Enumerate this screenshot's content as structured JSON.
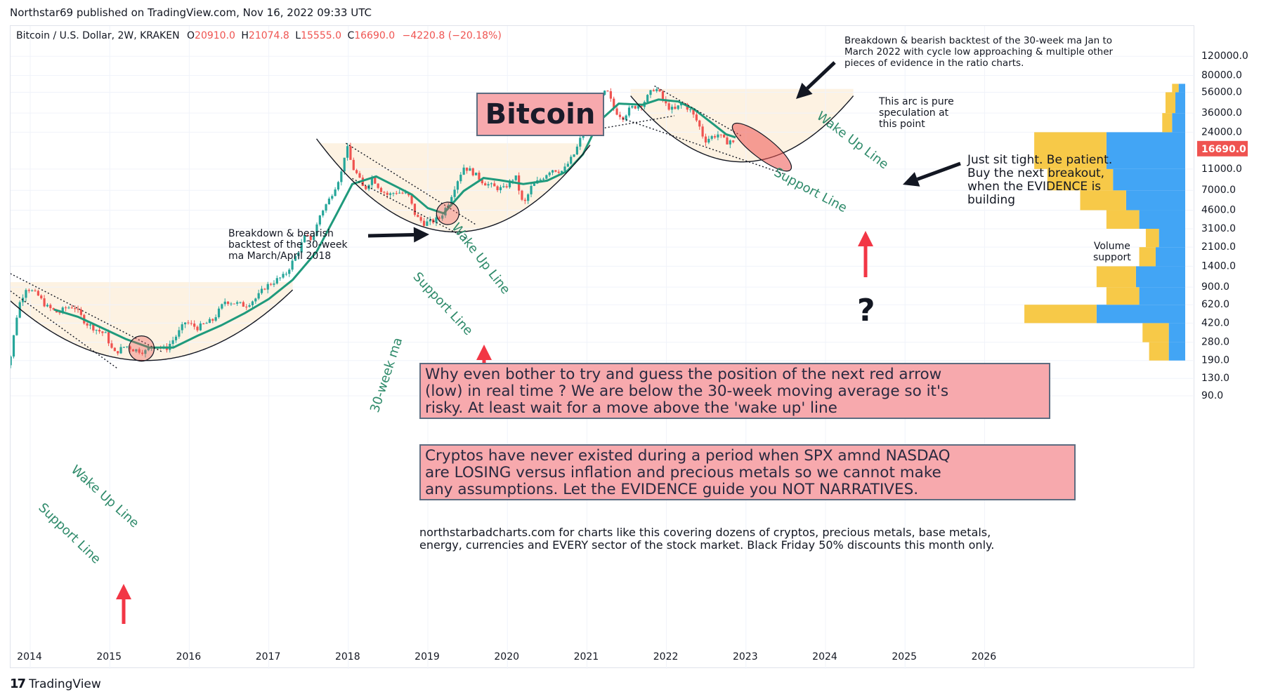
{
  "header": {
    "publisher": "Northstar69 published on TradingView.com, Nov 16, 2022 09:33 UTC"
  },
  "legend": {
    "symbol": "Bitcoin / U.S. Dollar, 2W, KRAKEN",
    "open_label": "O",
    "open": "20910.0",
    "high_label": "H",
    "high": "21074.8",
    "low_label": "L",
    "low": "15555.0",
    "close_label": "C",
    "close": "16690.0",
    "change": "−4220.8 (−20.18%)"
  },
  "title_box": "Bitcoin",
  "annotations": {
    "breakdown_2022": "Breakdown & bearish backtest of the 30-week ma Jan to March 2022 with cycle low approaching & multiple other pieces of evidence in the ratio charts.",
    "breakdown_2018_l1": "Breakdown & bearish",
    "breakdown_2018_l2": "backtest of the 30-week",
    "breakdown_2018_l3": "ma March/April 2018",
    "speculation_l1": "This arc is pure",
    "speculation_l2": "speculation at",
    "speculation_l3": "this point",
    "sit_tight_l1": "Just sit tight. Be patient.",
    "sit_tight_l2": "Buy the next breakout,",
    "sit_tight_l3": "when the EVIDENCE is",
    "sit_tight_l4": "building",
    "volume_support_l1": "Volume",
    "volume_support_l2": "support",
    "question": "?",
    "wake_up_line": "Wake Up Line",
    "support_line": "Support Line",
    "ma_label": "30-week ma",
    "box1_l1": "Why even bother to try and guess the position of the next red arrow",
    "box1_l2": "(low) in real time ? We are below the 30-week moving average so it's",
    "box1_l3": "risky. At least wait for a move above the 'wake up' line",
    "box2_l1": "Cryptos have never existed during a period when SPX amnd NASDAQ",
    "box2_l2": "are LOSING versus inflation and precious metals so we cannot make",
    "box2_l3": "any assumptions. Let the EVIDENCE guide you NOT NARRATIVES.",
    "promo_l1": "northstarbadcharts.com for charts like this covering dozens of cryptos, precious metals, base metals,",
    "promo_l2": "energy, currencies and EVERY sector of the stock market. Black Friday 50% discounts this month only."
  },
  "footer": {
    "logo": "17",
    "brand": "TradingView"
  },
  "colors": {
    "up": "#26a69a",
    "down": "#ef5350",
    "ma": "#1f9a7c",
    "shade": "#fdf2e2",
    "annotation_green": "#2e8a6a",
    "red_arrow": "#f23645",
    "vp_blue": "#42a5f5",
    "vp_yellow": "#f7c948",
    "price_tag": "#ef5350"
  },
  "chart_data": {
    "type": "candlestick",
    "scale": "log",
    "interval": "2W",
    "last_price": 16690.0,
    "price_tag": "16690.0",
    "y_ticks": [
      90,
      130,
      190,
      280,
      420,
      620,
      900,
      1400,
      2100,
      3100,
      4600,
      7000,
      11000,
      24000,
      36000,
      56000,
      80000,
      120000
    ],
    "y_tick_labels": [
      "90.0",
      "130.0",
      "190.0",
      "280.0",
      "420.0",
      "620.0",
      "900.0",
      "1400.0",
      "2100.0",
      "3100.0",
      "4600.0",
      "7000.0",
      "11000.0",
      "24000.0",
      "36000.0",
      "56000.0",
      "80000.0",
      "120000.0"
    ],
    "x_ticks": [
      2014,
      2015,
      2016,
      2017,
      2018,
      2019,
      2020,
      2021,
      2022,
      2023,
      2024,
      2025,
      2026
    ],
    "x_tick_labels": [
      "2014",
      "2015",
      "2016",
      "2017",
      "2018",
      "2019",
      "2020",
      "2021",
      "2022",
      "2023",
      "2024",
      "2025",
      "2026"
    ],
    "price_path": [
      [
        2013.6,
        130
      ],
      [
        2013.75,
        200
      ],
      [
        2013.85,
        600
      ],
      [
        2013.95,
        900
      ],
      [
        2014.1,
        750
      ],
      [
        2014.2,
        600
      ],
      [
        2014.35,
        520
      ],
      [
        2014.45,
        580
      ],
      [
        2014.55,
        600
      ],
      [
        2014.7,
        420
      ],
      [
        2014.85,
        360
      ],
      [
        2014.95,
        330
      ],
      [
        2015.05,
        220
      ],
      [
        2015.2,
        260
      ],
      [
        2015.3,
        240
      ],
      [
        2015.45,
        230
      ],
      [
        2015.55,
        270
      ],
      [
        2015.7,
        240
      ],
      [
        2015.85,
        330
      ],
      [
        2015.95,
        430
      ],
      [
        2016.1,
        380
      ],
      [
        2016.3,
        450
      ],
      [
        2016.45,
        670
      ],
      [
        2016.55,
        650
      ],
      [
        2016.7,
        610
      ],
      [
        2016.85,
        720
      ],
      [
        2016.95,
        900
      ],
      [
        2017.1,
        1050
      ],
      [
        2017.2,
        1150
      ],
      [
        2017.35,
        1800
      ],
      [
        2017.45,
        2600
      ],
      [
        2017.55,
        2500
      ],
      [
        2017.65,
        4300
      ],
      [
        2017.75,
        5600
      ],
      [
        2017.85,
        8000
      ],
      [
        2017.93,
        11000
      ],
      [
        2017.97,
        19000
      ],
      [
        2018.05,
        11500
      ],
      [
        2018.12,
        9500
      ],
      [
        2018.2,
        7000
      ],
      [
        2018.3,
        9300
      ],
      [
        2018.4,
        7200
      ],
      [
        2018.5,
        6300
      ],
      [
        2018.6,
        6800
      ],
      [
        2018.75,
        6400
      ],
      [
        2018.85,
        4000
      ],
      [
        2018.95,
        3500
      ],
      [
        2019.05,
        3600
      ],
      [
        2019.15,
        3900
      ],
      [
        2019.25,
        5200
      ],
      [
        2019.35,
        8000
      ],
      [
        2019.45,
        11500
      ],
      [
        2019.55,
        10500
      ],
      [
        2019.7,
        8300
      ],
      [
        2019.85,
        7400
      ],
      [
        2019.95,
        7200
      ],
      [
        2020.1,
        9500
      ],
      [
        2020.2,
        5000
      ],
      [
        2020.3,
        7500
      ],
      [
        2020.45,
        9300
      ],
      [
        2020.55,
        11000
      ],
      [
        2020.7,
        10500
      ],
      [
        2020.85,
        15500
      ],
      [
        2020.95,
        24000
      ],
      [
        2021.05,
        33000
      ],
      [
        2021.15,
        48000
      ],
      [
        2021.25,
        58000
      ],
      [
        2021.35,
        38000
      ],
      [
        2021.45,
        33000
      ],
      [
        2021.55,
        40000
      ],
      [
        2021.7,
        44000
      ],
      [
        2021.85,
        62000
      ],
      [
        2021.9,
        57000
      ],
      [
        2022.0,
        42000
      ],
      [
        2022.1,
        38000
      ],
      [
        2022.2,
        45000
      ],
      [
        2022.3,
        38000
      ],
      [
        2022.4,
        29000
      ],
      [
        2022.48,
        20000
      ],
      [
        2022.55,
        21500
      ],
      [
        2022.65,
        23000
      ],
      [
        2022.75,
        19500
      ],
      [
        2022.82,
        20500
      ],
      [
        2022.87,
        16690
      ]
    ],
    "ma_path": [
      [
        2014.3,
        560
      ],
      [
        2014.6,
        480
      ],
      [
        2014.9,
        380
      ],
      [
        2015.2,
        300
      ],
      [
        2015.5,
        250
      ],
      [
        2015.8,
        250
      ],
      [
        2016.1,
        320
      ],
      [
        2016.4,
        400
      ],
      [
        2016.7,
        520
      ],
      [
        2017.0,
        700
      ],
      [
        2017.3,
        1050
      ],
      [
        2017.6,
        1900
      ],
      [
        2017.85,
        4200
      ],
      [
        2018.05,
        8000
      ],
      [
        2018.35,
        9400
      ],
      [
        2018.6,
        7600
      ],
      [
        2018.8,
        6400
      ],
      [
        2019.0,
        4800
      ],
      [
        2019.2,
        4300
      ],
      [
        2019.45,
        6900
      ],
      [
        2019.7,
        9100
      ],
      [
        2019.9,
        8700
      ],
      [
        2020.2,
        8000
      ],
      [
        2020.5,
        8600
      ],
      [
        2020.75,
        10500
      ],
      [
        2020.95,
        15000
      ],
      [
        2021.15,
        30000
      ],
      [
        2021.4,
        44000
      ],
      [
        2021.7,
        43000
      ],
      [
        2021.9,
        48000
      ],
      [
        2022.15,
        46000
      ],
      [
        2022.35,
        39000
      ],
      [
        2022.55,
        30000
      ],
      [
        2022.75,
        23000
      ],
      [
        2022.87,
        21500
      ]
    ],
    "volume_profile": [
      {
        "price": 190,
        "blue": 0.05,
        "yellow": 0.06
      },
      {
        "price": 280,
        "blue": 0.05,
        "yellow": 0.08
      },
      {
        "price": 420,
        "blue": 0.27,
        "yellow": 0.22
      },
      {
        "price": 620,
        "blue": 0.14,
        "yellow": 0.1
      },
      {
        "price": 900,
        "blue": 0.15,
        "yellow": 0.12
      },
      {
        "price": 1400,
        "blue": 0.09,
        "yellow": 0.05
      },
      {
        "price": 2100,
        "blue": 0.08,
        "yellow": 0.04
      },
      {
        "price": 3100,
        "blue": 0.14,
        "yellow": 0.1
      },
      {
        "price": 4600,
        "blue": 0.18,
        "yellow": 0.14
      },
      {
        "price": 7000,
        "blue": 0.22,
        "yellow": 0.2
      },
      {
        "price": 11000,
        "blue": 0.24,
        "yellow": 0.22
      },
      {
        "price": 24000,
        "blue": 0.04,
        "yellow": 0.03
      },
      {
        "price": 36000,
        "blue": 0.03,
        "yellow": 0.03
      },
      {
        "price": 56000,
        "blue": 0.02,
        "yellow": 0.02
      }
    ]
  }
}
